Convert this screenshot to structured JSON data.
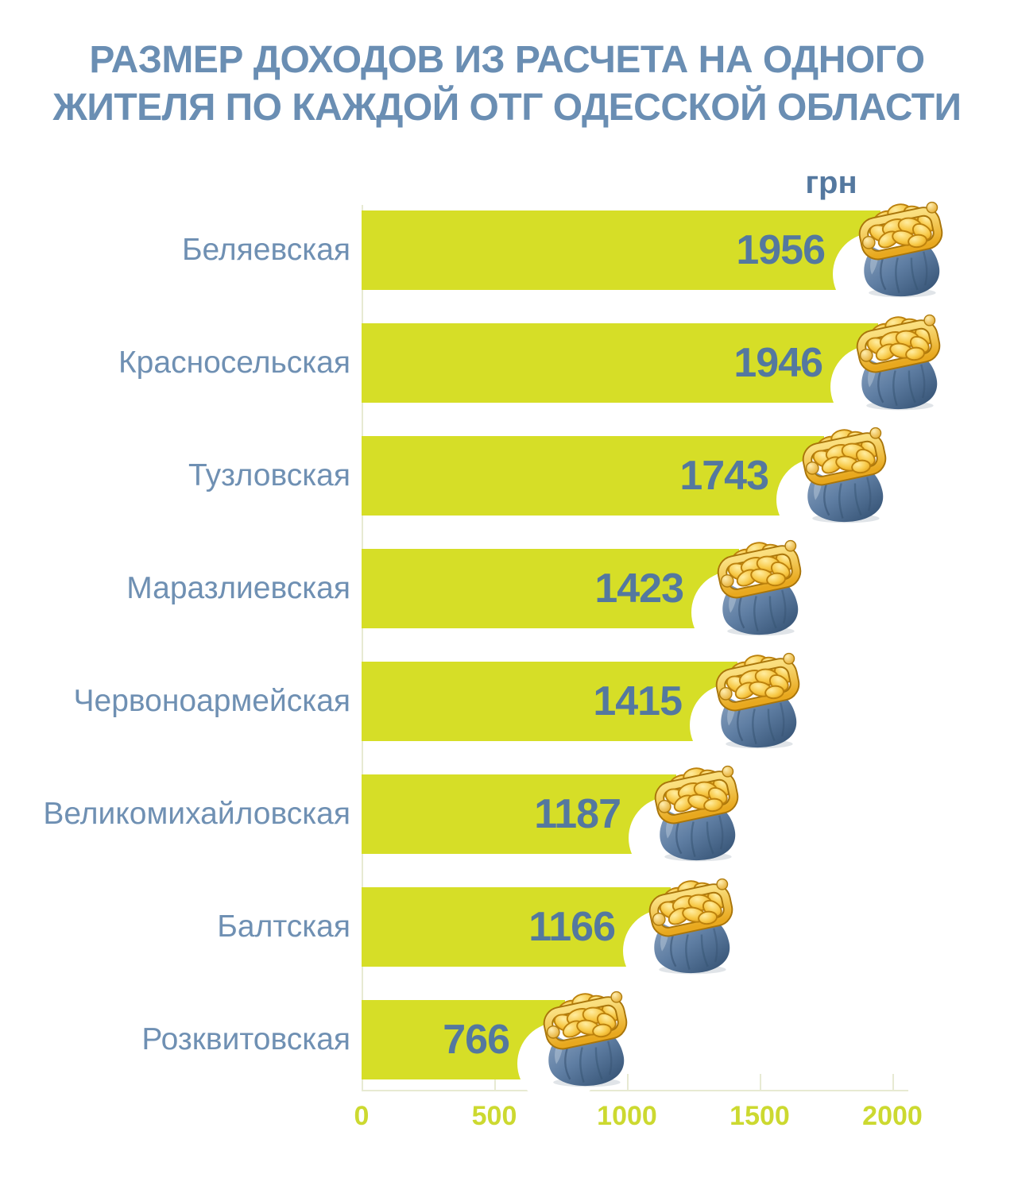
{
  "title": {
    "line1": "РАЗМЕР ДОХОДОВ ИЗ РАСЧЕТА НА ОДНОГО",
    "line2": "ЖИТЕЛЯ ПО КАЖДОЙ ОТГ ОДЕССКОЙ ОБЛАСТИ"
  },
  "unit_label": "грн",
  "colors": {
    "bar": "#d6de27",
    "axisLabel": "#ccd930",
    "axisLine": "#e7ead2",
    "titleText": "#6a8eb3",
    "categoryText": "#6f90b3",
    "valueText": "#54789f"
  },
  "chart_data": {
    "type": "bar",
    "orientation": "horizontal",
    "title": "РАЗМЕР ДОХОДОВ ИЗ РАСЧЕТА НА ОДНОГО ЖИТЕЛЯ ПО КАЖДОЙ ОТГ ОДЕССКОЙ ОБЛАСТИ",
    "unit": "грн",
    "categories": [
      "Беляевская",
      "Красносельская",
      "Тузловская",
      "Маразлиевская",
      "Червоноармейская",
      "Великомихайловская",
      "Балтская",
      "Розквитовская"
    ],
    "values": [
      1956,
      1946,
      1743,
      1423,
      1415,
      1187,
      1166,
      766
    ],
    "xlim": [
      0,
      2000
    ],
    "x_ticks": [
      0,
      500,
      1000,
      1500,
      2000
    ],
    "grid": false,
    "legend": false,
    "bar_icon": "coin-purse-icon"
  }
}
